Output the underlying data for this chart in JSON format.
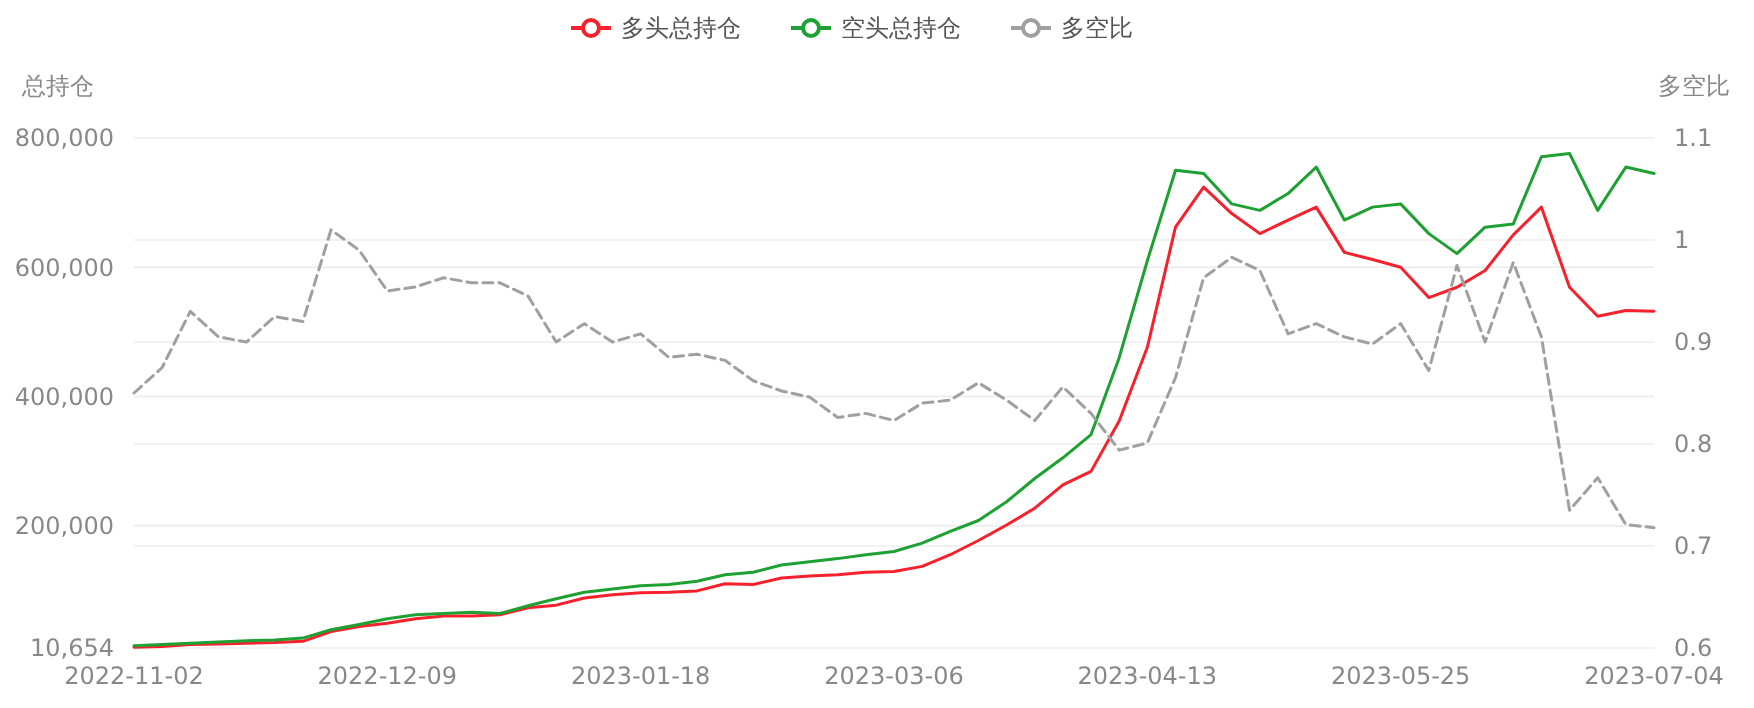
{
  "chart_data": {
    "type": "line",
    "ylabel": "总持仓",
    "y2label": "多空比",
    "categories": [
      "2022-11-02",
      null,
      null,
      null,
      null,
      null,
      null,
      null,
      null,
      "2022-12-09",
      null,
      null,
      null,
      null,
      null,
      null,
      null,
      null,
      "2023-01-18",
      null,
      null,
      null,
      null,
      null,
      null,
      null,
      null,
      "2023-03-06",
      null,
      null,
      null,
      null,
      null,
      null,
      null,
      null,
      "2023-04-13",
      null,
      null,
      null,
      null,
      null,
      null,
      null,
      null,
      "2023-05-25",
      null,
      null,
      null,
      null,
      null,
      null,
      null,
      null,
      "2023-07-04"
    ],
    "series": [
      {
        "name": "多头总持仓",
        "color": "#f5222d",
        "values": [
          12000,
          13000,
          16000,
          17000,
          18000,
          19000,
          21000,
          36000,
          44000,
          49000,
          56000,
          60000,
          60000,
          62000,
          73000,
          77000,
          88000,
          93000,
          96000,
          97000,
          99000,
          110000,
          109000,
          119000,
          122000,
          124000,
          128000,
          129000,
          137000,
          155000,
          177000,
          201000,
          227000,
          263000,
          284000,
          362000,
          476000,
          662000,
          724000,
          683000,
          652000,
          673000,
          693000,
          623000,
          612000,
          600000,
          553000,
          569000,
          595000,
          650000,
          693000,
          569000,
          524000,
          533000,
          532000
        ]
      },
      {
        "name": "空头总持仓",
        "color": "#1fa032",
        "values": [
          14000,
          16000,
          18000,
          20000,
          22000,
          23000,
          26000,
          39000,
          47000,
          56000,
          62000,
          64000,
          66000,
          64000,
          76000,
          87000,
          97000,
          102000,
          107000,
          109000,
          114000,
          124000,
          128000,
          139000,
          144000,
          149000,
          155000,
          160000,
          173000,
          191000,
          208000,
          237000,
          273000,
          305000,
          341000,
          460000,
          610000,
          750000,
          745000,
          698000,
          688000,
          714000,
          755000,
          673000,
          693000,
          698000,
          652000,
          621000,
          662000,
          667000,
          771000,
          776000,
          688000,
          755000,
          745000
        ]
      },
      {
        "name": "多空比",
        "color": "#a0a0a0",
        "axis": "y2",
        "line_style": "dashed",
        "values": [
          0.85,
          0.875,
          0.93,
          0.905,
          0.9,
          0.925,
          0.92,
          1.01,
          0.99,
          0.95,
          0.954,
          0.963,
          0.958,
          0.958,
          0.945,
          0.9,
          0.918,
          0.9,
          0.908,
          0.885,
          0.888,
          0.882,
          0.862,
          0.852,
          0.846,
          0.826,
          0.83,
          0.823,
          0.84,
          0.843,
          0.86,
          0.843,
          0.823,
          0.856,
          0.83,
          0.794,
          0.801,
          0.865,
          0.963,
          0.983,
          0.97,
          0.908,
          0.918,
          0.905,
          0.898,
          0.918,
          0.872,
          0.975,
          0.9,
          0.978,
          0.905,
          0.735,
          0.767,
          0.721,
          0.718
        ]
      }
    ],
    "ylim": [
      10654,
      800000
    ],
    "yticks": [
      {
        "value": 10654,
        "label": "10,654"
      },
      {
        "value": 200000,
        "label": "200,000"
      },
      {
        "value": 400000,
        "label": "400,000"
      },
      {
        "value": 600000,
        "label": "600,000"
      },
      {
        "value": 800000,
        "label": "800,000"
      }
    ],
    "y2lim": [
      0.6,
      1.1
    ],
    "y2ticks": [
      0.6,
      0.7,
      0.8,
      0.9,
      1,
      1.1
    ],
    "grid": true,
    "legend": "top",
    "marker": "none",
    "line_style": "solid"
  }
}
